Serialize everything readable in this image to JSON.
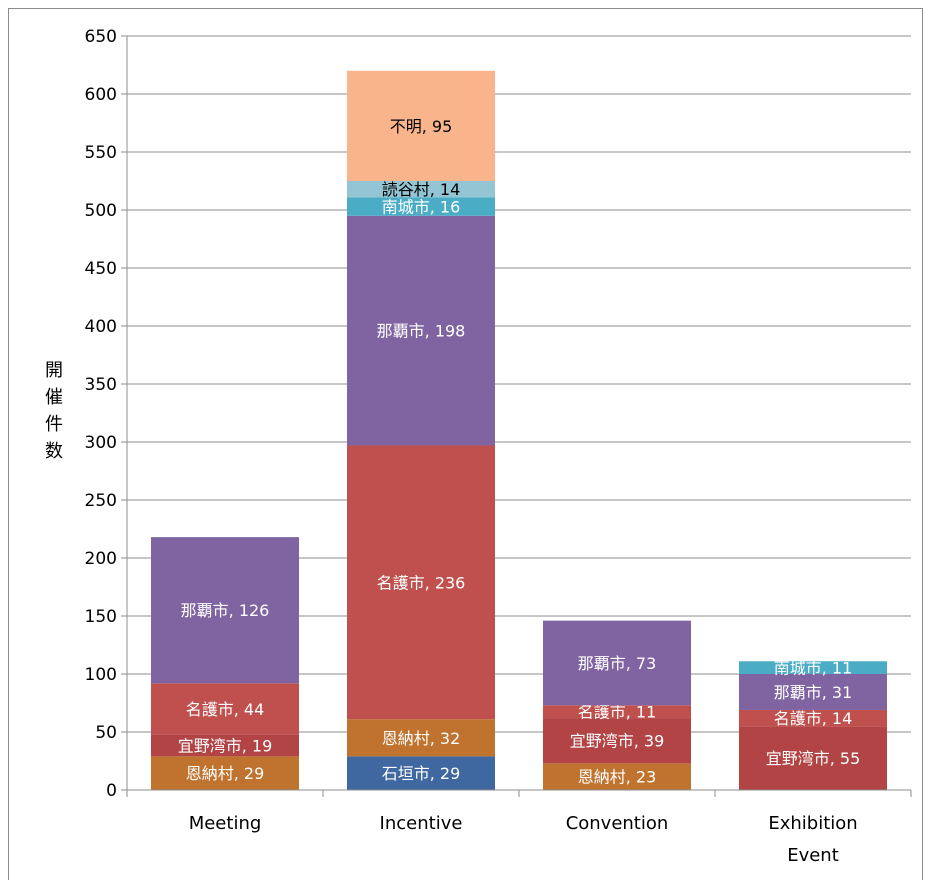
{
  "chart_data": {
    "type": "bar",
    "stacked": true,
    "categories": [
      "Meeting",
      "Incentive",
      "Convention",
      "Exhibition\nEvent"
    ],
    "ylabel": "開催件数",
    "ylim": [
      0,
      650
    ],
    "ytick_step": 50,
    "grid": true,
    "legend": "none",
    "stacks": [
      [
        {
          "label": "恩納村",
          "value": 29,
          "color": "#c0732f"
        },
        {
          "label": "宜野湾市",
          "value": 19,
          "color": "#b24445"
        },
        {
          "label": "名護市",
          "value": 44,
          "color": "#c0504d"
        },
        {
          "label": "那覇市",
          "value": 126,
          "color": "#8064a2"
        }
      ],
      [
        {
          "label": "石垣市",
          "value": 29,
          "color": "#3f67a0"
        },
        {
          "label": "恩納村",
          "value": 32,
          "color": "#c0732f"
        },
        {
          "label": "名護市",
          "value": 236,
          "color": "#c0504d"
        },
        {
          "label": "那覇市",
          "value": 198,
          "color": "#8064a2"
        },
        {
          "label": "南城市",
          "value": 16,
          "color": "#4bacc6"
        },
        {
          "label": "読谷村",
          "value": 14,
          "color": "#93c5d5"
        },
        {
          "label": "不明",
          "value": 95,
          "color": "#f9b48c"
        }
      ],
      [
        {
          "label": "恩納村",
          "value": 23,
          "color": "#c0732f"
        },
        {
          "label": "宜野湾市",
          "value": 39,
          "color": "#b24445"
        },
        {
          "label": "名護市",
          "value": 11,
          "color": "#c0504d"
        },
        {
          "label": "那覇市",
          "value": 73,
          "color": "#8064a2"
        }
      ],
      [
        {
          "label": "宜野湾市",
          "value": 55,
          "color": "#b24445"
        },
        {
          "label": "名護市",
          "value": 14,
          "color": "#c0504d"
        },
        {
          "label": "那覇市",
          "value": 31,
          "color": "#8064a2"
        },
        {
          "label": "南城市",
          "value": 11,
          "color": "#4bacc6"
        }
      ]
    ]
  }
}
